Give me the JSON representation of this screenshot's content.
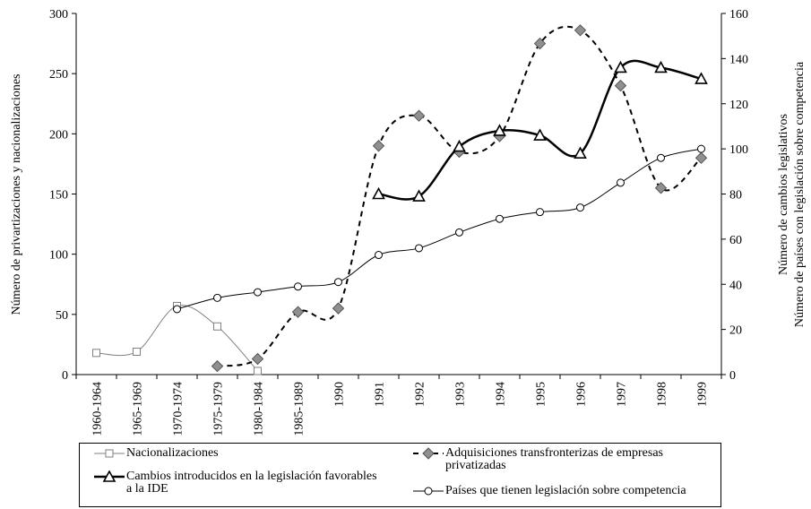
{
  "chart_data": {
    "type": "line",
    "ylabel": "Número de privartizaciones y nacionalizaciones",
    "y2label": [
      "Número de cambios legislativos",
      "Número de países con legislación  sobre competencia"
    ],
    "categories": [
      "1960-1964",
      "1965-1969",
      "1970-1974",
      "1975-1979",
      "1980-1984",
      "1985-1989",
      "1990",
      "1991",
      "1992",
      "1993",
      "1994",
      "1995",
      "1996",
      "1997",
      "1998",
      "1999"
    ],
    "ylim": [
      0,
      300
    ],
    "yticks": [
      0,
      50,
      100,
      150,
      200,
      250,
      300
    ],
    "y2lim": [
      0,
      160
    ],
    "y2ticks": [
      0,
      20,
      40,
      60,
      80,
      100,
      120,
      140,
      160
    ],
    "series": [
      {
        "name": "Nacionalizaciones",
        "color": "#808080",
        "marker": "square",
        "axis": "y",
        "values": [
          18,
          19,
          57,
          40,
          3,
          null,
          null,
          null,
          null,
          null,
          null,
          null,
          null,
          null,
          null,
          null
        ]
      },
      {
        "name": "Adquisiciones transfronterizas de empresas privatizadas",
        "color": "#000000",
        "marker": "diamond",
        "dashed": true,
        "axis": "y",
        "values": [
          null,
          null,
          null,
          7,
          13,
          52,
          55,
          190,
          215,
          185,
          198,
          275,
          286,
          240,
          155,
          180
        ]
      },
      {
        "name": "Cambios introducidos en la legislación favorables a la IDE",
        "color": "#000000",
        "marker": "triangle",
        "thick": true,
        "axis": "y2",
        "values": [
          null,
          null,
          null,
          null,
          null,
          null,
          null,
          80,
          79,
          101,
          108,
          106,
          98,
          136,
          136,
          131
        ]
      },
      {
        "name": "Países que tienen legislación sobre competencia",
        "color": "#000000",
        "marker": "circle",
        "axis": "y2",
        "values": [
          null,
          null,
          29,
          34,
          36.5,
          39,
          41,
          53,
          56,
          63,
          69,
          72,
          74,
          85,
          96,
          100
        ]
      }
    ]
  }
}
